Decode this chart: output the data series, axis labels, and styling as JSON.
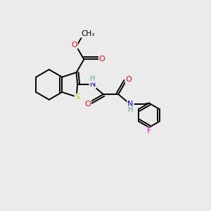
{
  "background_color": "#ebebeb",
  "atom_colors": {
    "C": "#000000",
    "O": "#ff0000",
    "N": "#0000cc",
    "S": "#cccc00",
    "F": "#ff00ff",
    "H": "#5f9ea0"
  },
  "bond_color": "#000000",
  "bond_width": 1.4,
  "figsize": [
    3.0,
    3.0
  ],
  "dpi": 100
}
